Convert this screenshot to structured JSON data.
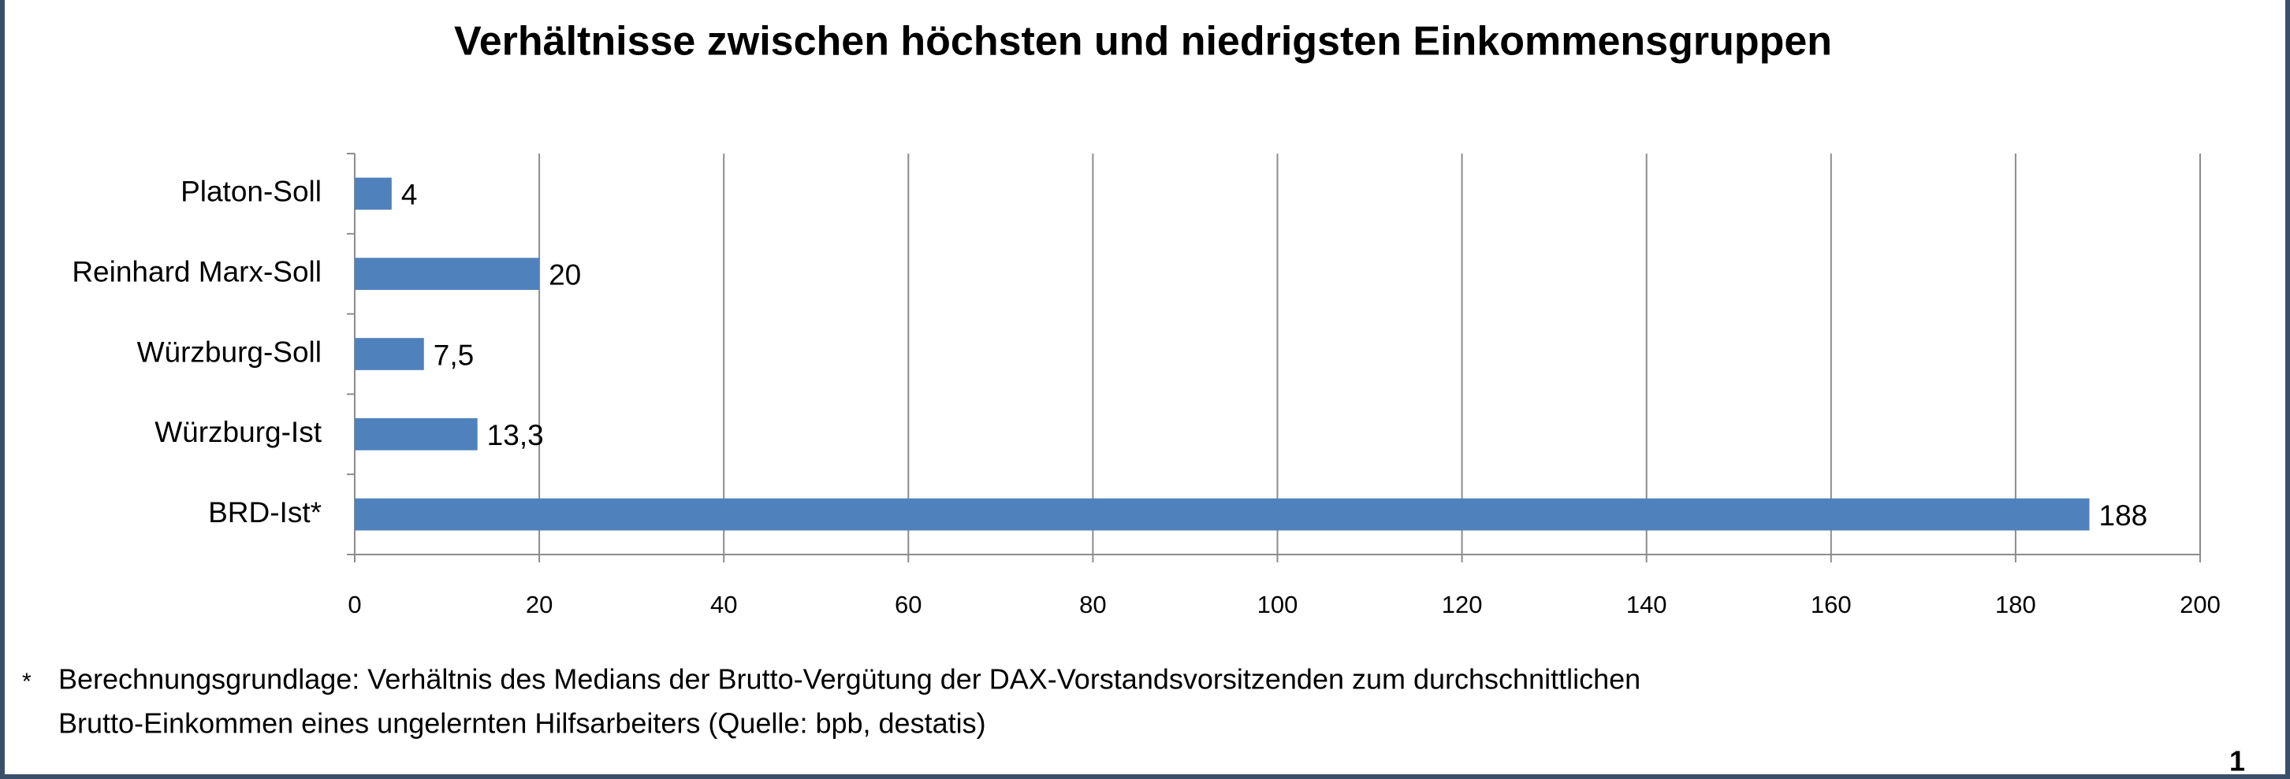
{
  "chart_data": {
    "type": "bar",
    "orientation": "horizontal",
    "title": "Verhältnisse zwischen höchsten und niedrigsten Einkommensgruppen",
    "categories": [
      "Platon-Soll",
      "Reinhard Marx-Soll",
      "Würzburg-Soll",
      "Würzburg-Ist",
      "BRD-Ist*"
    ],
    "values": [
      4,
      20,
      7.5,
      13.3,
      188
    ],
    "value_labels": [
      "4",
      "20",
      "7,5",
      "13,3",
      "188"
    ],
    "color": "#4f81bd",
    "xlim": [
      0,
      200
    ],
    "xticks": [
      0,
      20,
      40,
      60,
      80,
      100,
      120,
      140,
      160,
      180,
      200
    ],
    "grid": true,
    "footnote": {
      "marker": "*",
      "lines": [
        "Berechnungsgrundlage: Verhältnis des Medians der Brutto-Vergütung der DAX-Vorstandsvorsitzenden zum durchschnittlichen",
        "Brutto-Einkommen eines ungelernten Hilfsarbeiters (Quelle: bpb, destatis)"
      ]
    },
    "page_number": "1"
  }
}
